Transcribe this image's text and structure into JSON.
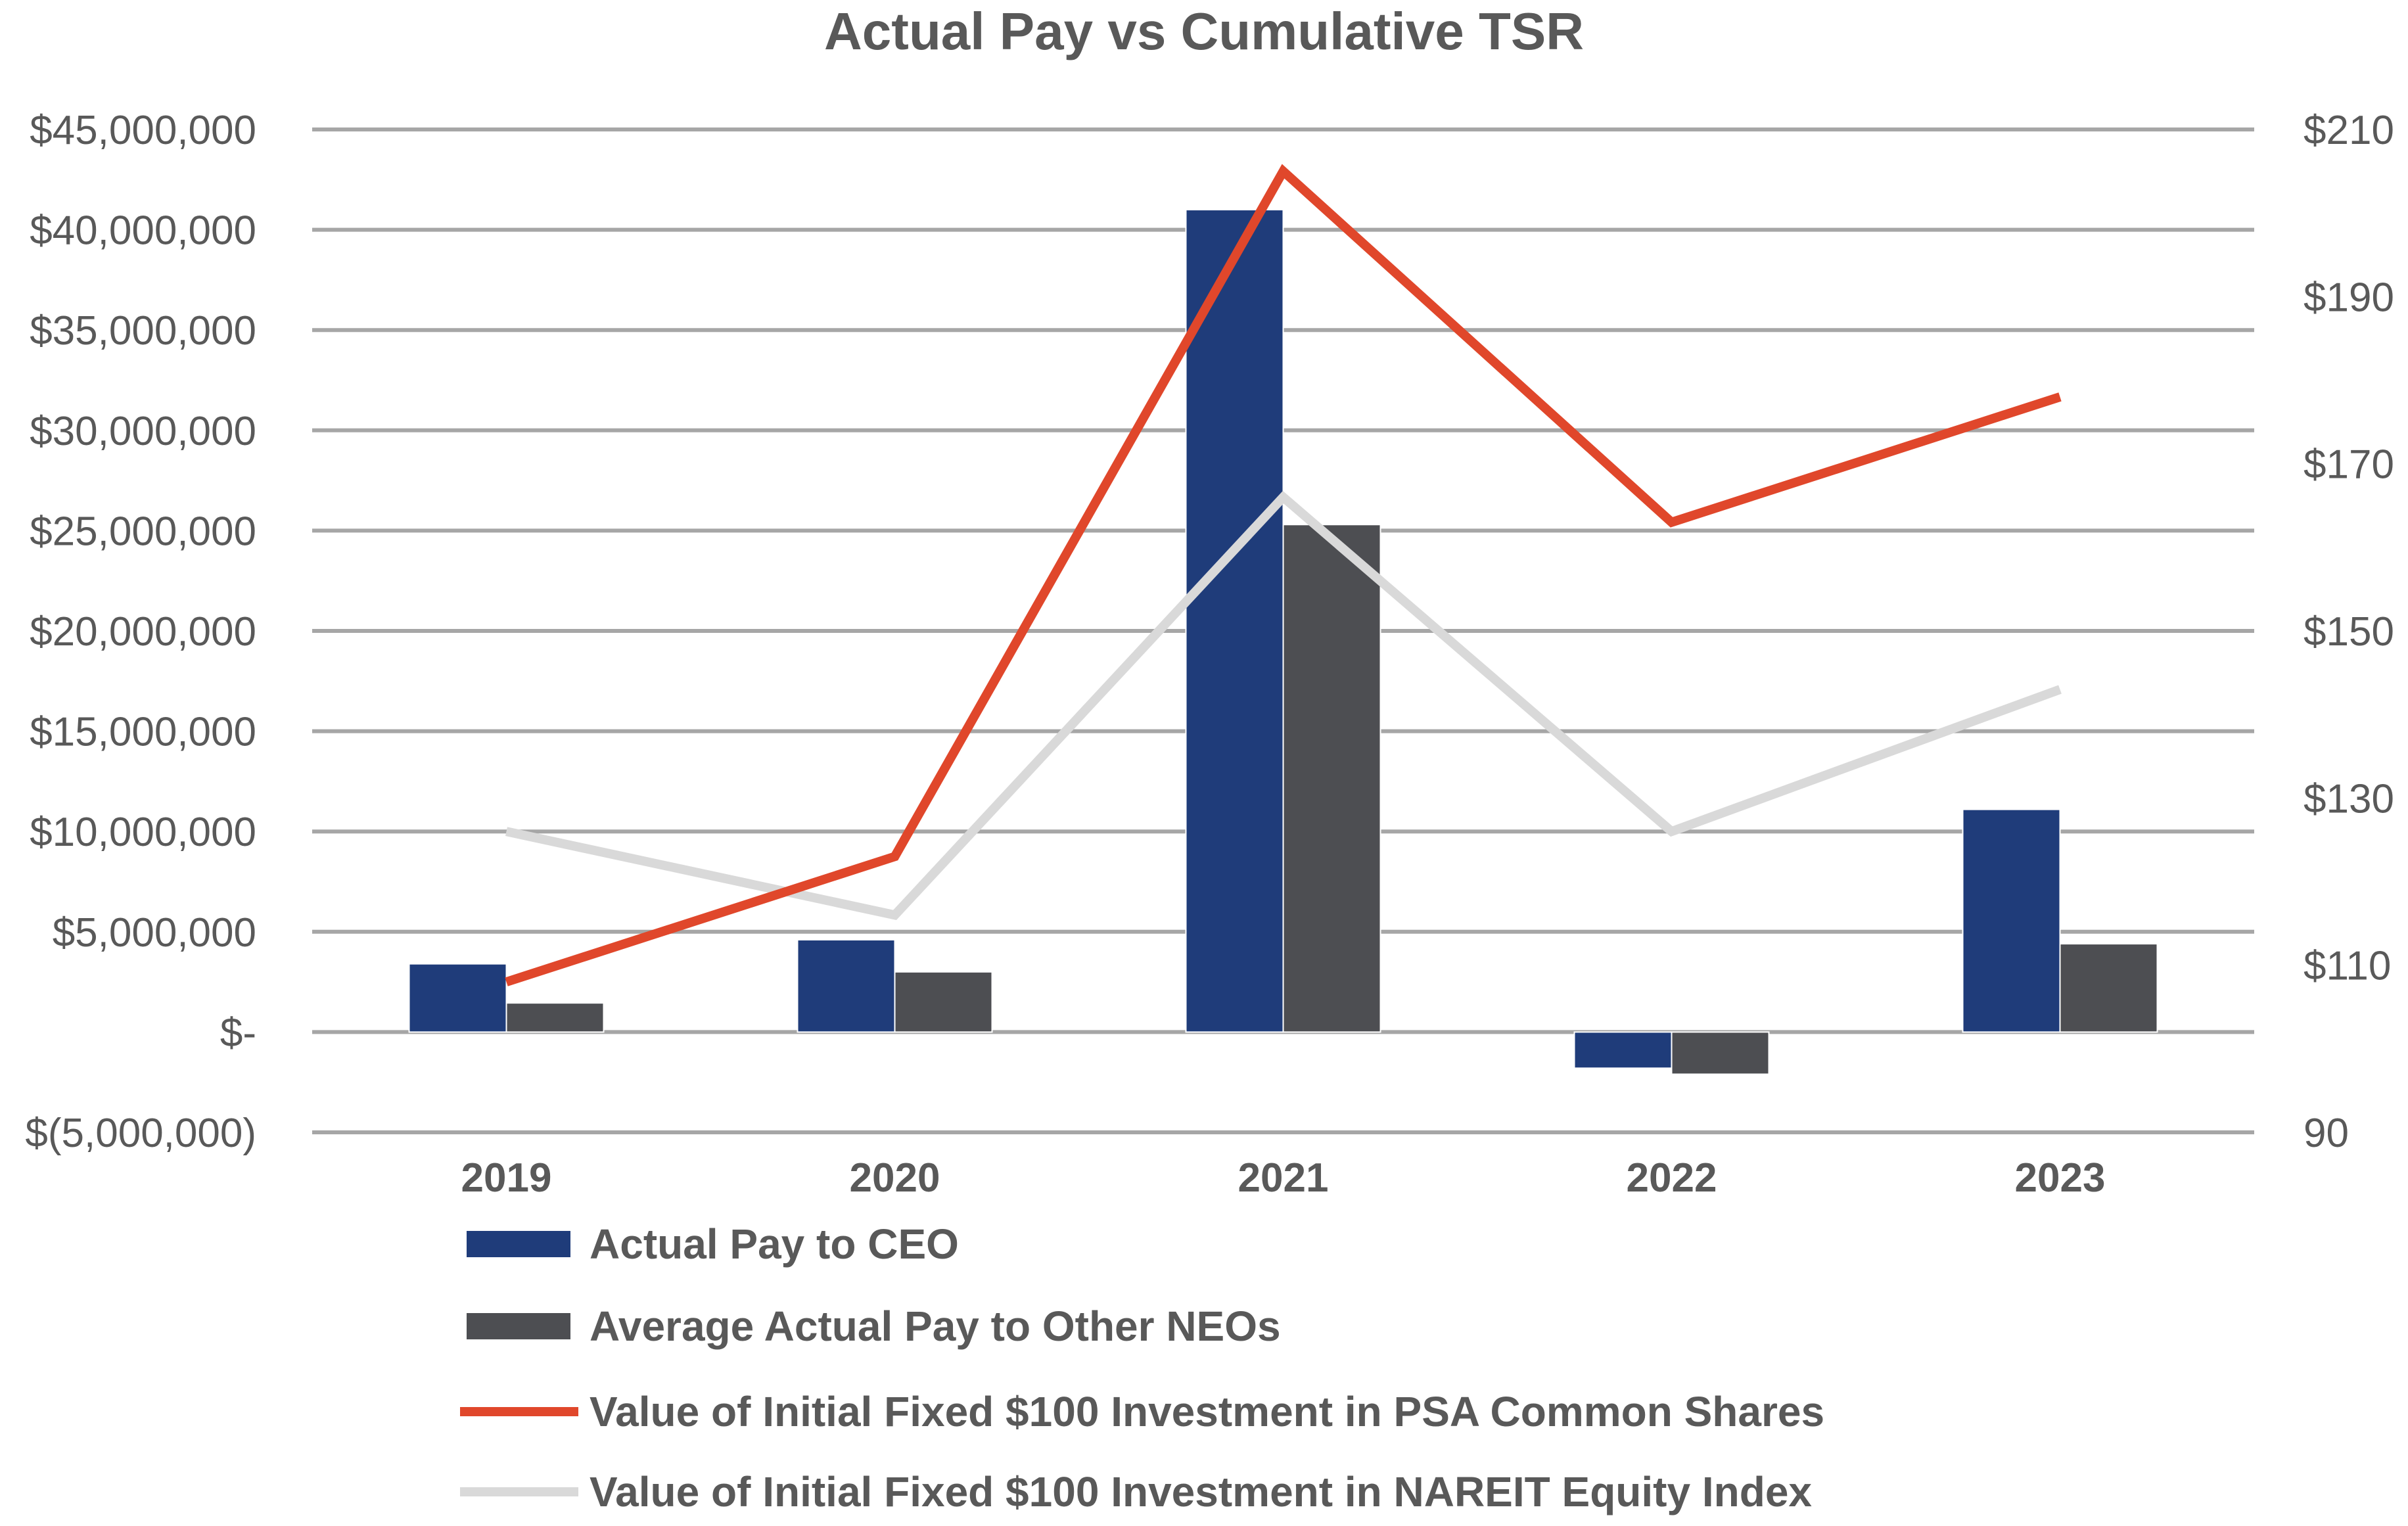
{
  "chart_data": {
    "type": "bar",
    "title": "Actual Pay vs Cumulative TSR",
    "categories": [
      "2019",
      "2020",
      "2021",
      "2022",
      "2023"
    ],
    "bar_series": [
      {
        "name": "Actual Pay to CEO",
        "color": "#1f3c7a",
        "values": [
          3400000,
          4600000,
          41000000,
          -1800000,
          11100000
        ]
      },
      {
        "name": "Average Actual Pay to Other NEOs",
        "color": "#4d4e52",
        "values": [
          1450000,
          3000000,
          25300000,
          -2100000,
          4400000
        ]
      }
    ],
    "line_series": [
      {
        "name": "Value of Initial Fixed $100 Investment in PSA Common Shares",
        "color": "#e0472b",
        "values": [
          108,
          123,
          205,
          163,
          178
        ]
      },
      {
        "name": "Value of Initial Fixed $100 Investment in NAREIT Equity Index",
        "color": "#d9d9d9",
        "values": [
          126,
          116,
          166,
          126,
          143
        ]
      }
    ],
    "y_left": {
      "min": -5000000,
      "max": 45000000,
      "step": 5000000,
      "tick_labels": [
        "$(5,000,000)",
        "$-",
        "$5,000,000",
        "$10,000,000",
        "$15,000,000",
        "$20,000,000",
        "$25,000,000",
        "$30,000,000",
        "$35,000,000",
        "$40,000,000",
        "$45,000,000"
      ]
    },
    "y_right": {
      "min": 90,
      "max": 210,
      "step": 20,
      "tick_labels": [
        "90",
        "$110",
        "$130",
        "$150",
        "$170",
        "$190",
        "$210"
      ]
    },
    "legend_position": "bottom",
    "grid": true
  }
}
